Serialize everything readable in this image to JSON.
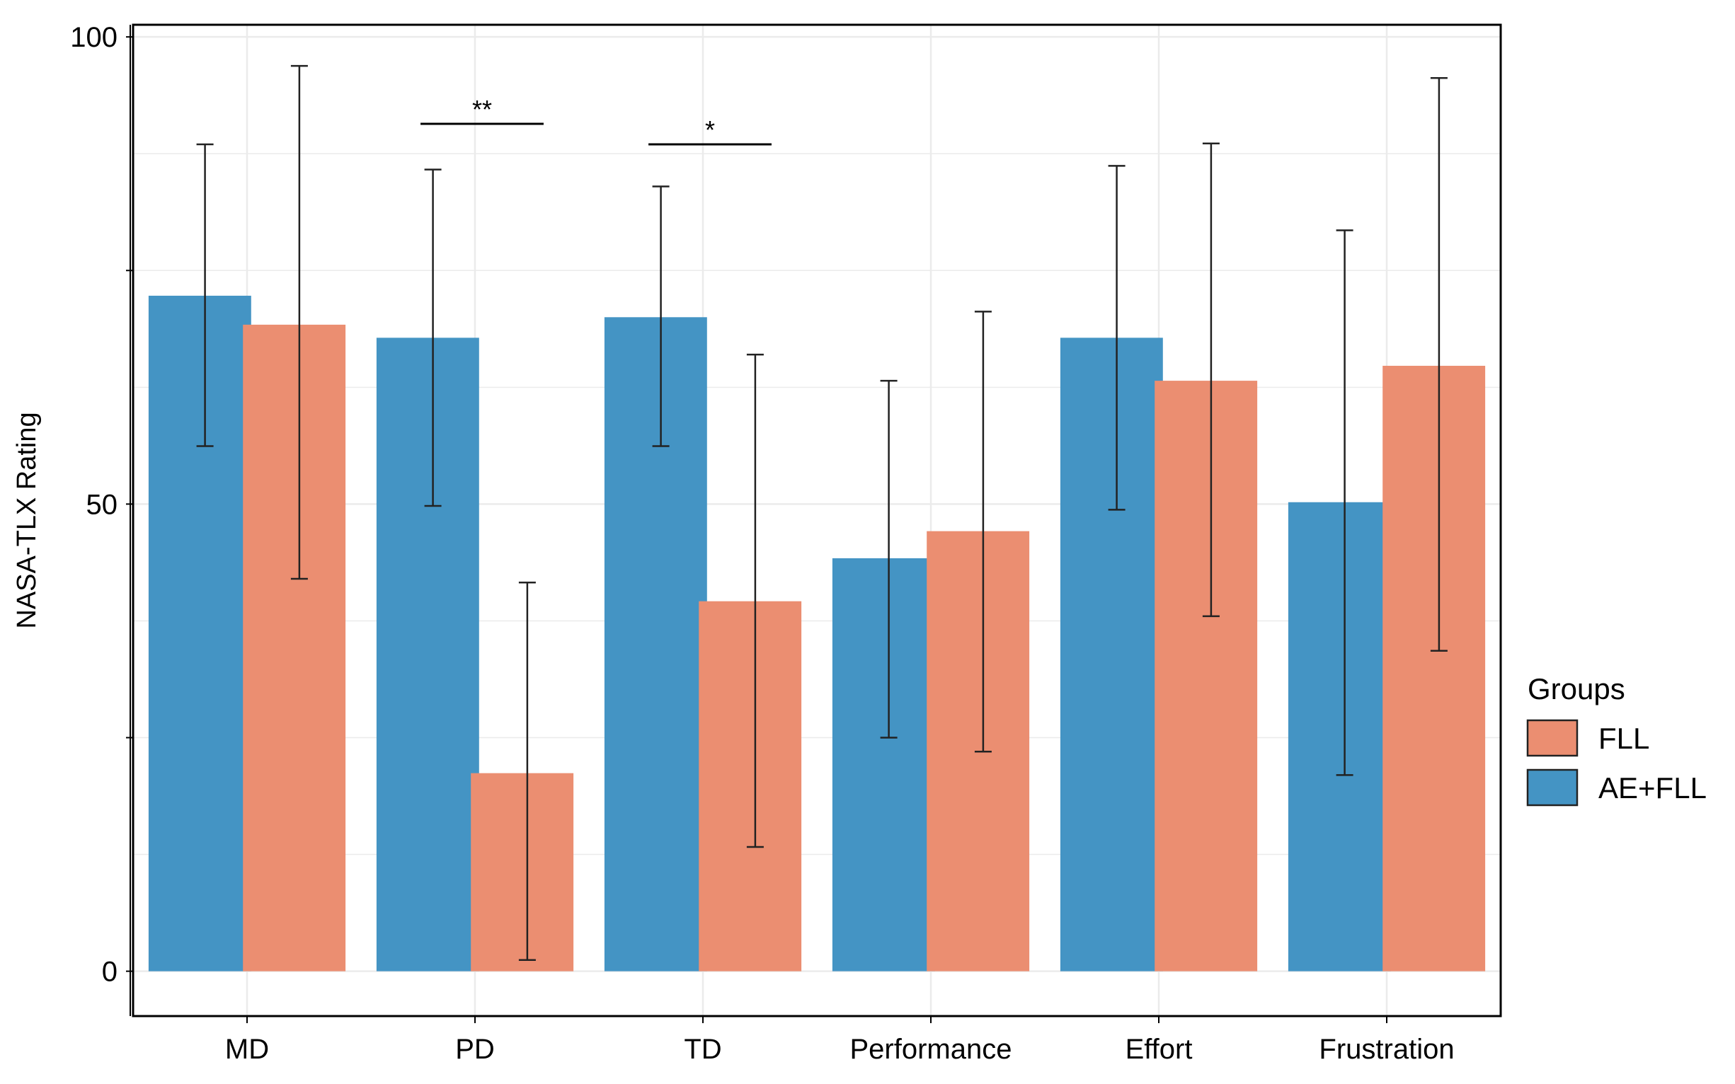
{
  "chart_data": {
    "type": "bar",
    "title": "",
    "xlabel": "",
    "ylabel": "NASA-TLX Rating",
    "ylim": [
      -4.8,
      101.3
    ],
    "yticks": [
      0,
      50,
      100
    ],
    "ytick_labels": [
      "0",
      "50",
      "100"
    ],
    "grid": true,
    "categories": [
      "MD",
      "PD",
      "TD",
      "Performance",
      "Effort",
      "Frustration"
    ],
    "series": [
      {
        "name": "AE+FLL",
        "color": "#4494C4",
        "values": [
          72.3,
          67.8,
          70.0,
          44.2,
          67.8,
          50.2
        ],
        "err_low": [
          56.2,
          49.8,
          56.2,
          25.0,
          49.4,
          21.0
        ],
        "err_high": [
          88.5,
          85.8,
          84.0,
          63.2,
          86.2,
          79.3
        ]
      },
      {
        "name": "FLL",
        "color": "#EB8E71",
        "values": [
          69.2,
          21.2,
          39.6,
          47.1,
          63.2,
          64.8
        ],
        "err_low": [
          42.0,
          1.2,
          13.3,
          23.5,
          38.0,
          34.3
        ],
        "err_high": [
          96.9,
          41.6,
          66.0,
          70.6,
          88.6,
          95.6
        ]
      }
    ],
    "legend": {
      "title": "Groups",
      "position": "right",
      "entries": [
        {
          "label": "FLL",
          "color": "#EB8E71"
        },
        {
          "label": "AE+FLL",
          "color": "#4494C4"
        }
      ]
    },
    "annotations": [
      {
        "category": "PD",
        "label": "**",
        "y": 90.7
      },
      {
        "category": "TD",
        "label": "*",
        "y": 88.5
      }
    ]
  }
}
